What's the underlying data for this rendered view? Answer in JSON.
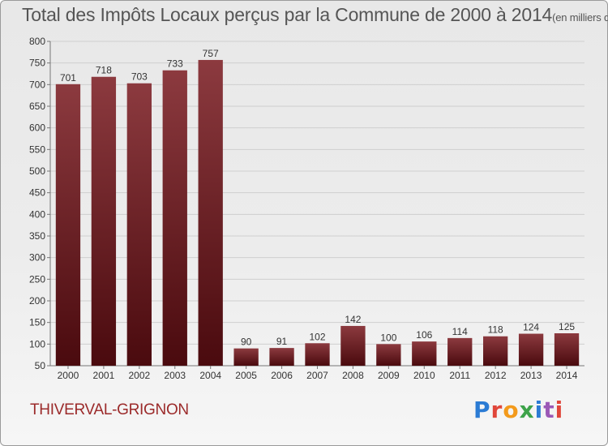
{
  "title": "Total des Impôts Locaux perçus par la Commune de 2000 à 2014",
  "title_unit": "(en milliers d'€)",
  "commune": "THIVERVAL-GRIGNON",
  "logo": {
    "letters": [
      "P",
      "r",
      "o",
      "x",
      "i",
      "t",
      "i"
    ]
  },
  "colors": {
    "bar_top": "#8c3a3f",
    "bar_bottom": "#4a0a0e",
    "commune": "#9b2a2a"
  },
  "chart_data": {
    "type": "bar",
    "title": "Total des Impôts Locaux perçus par la Commune de 2000 à 2014",
    "categories": [
      "2000",
      "2001",
      "2002",
      "2003",
      "2004",
      "2005",
      "2006",
      "2007",
      "2008",
      "2009",
      "2010",
      "2011",
      "2012",
      "2013",
      "2014"
    ],
    "values": [
      701,
      718,
      703,
      733,
      757,
      90,
      91,
      102,
      142,
      100,
      106,
      114,
      118,
      124,
      125
    ],
    "ylim": [
      50,
      800
    ],
    "yticks": [
      50,
      100,
      150,
      200,
      250,
      300,
      350,
      400,
      450,
      500,
      550,
      600,
      650,
      700,
      750,
      800
    ],
    "grid": true,
    "data_labels": true
  }
}
